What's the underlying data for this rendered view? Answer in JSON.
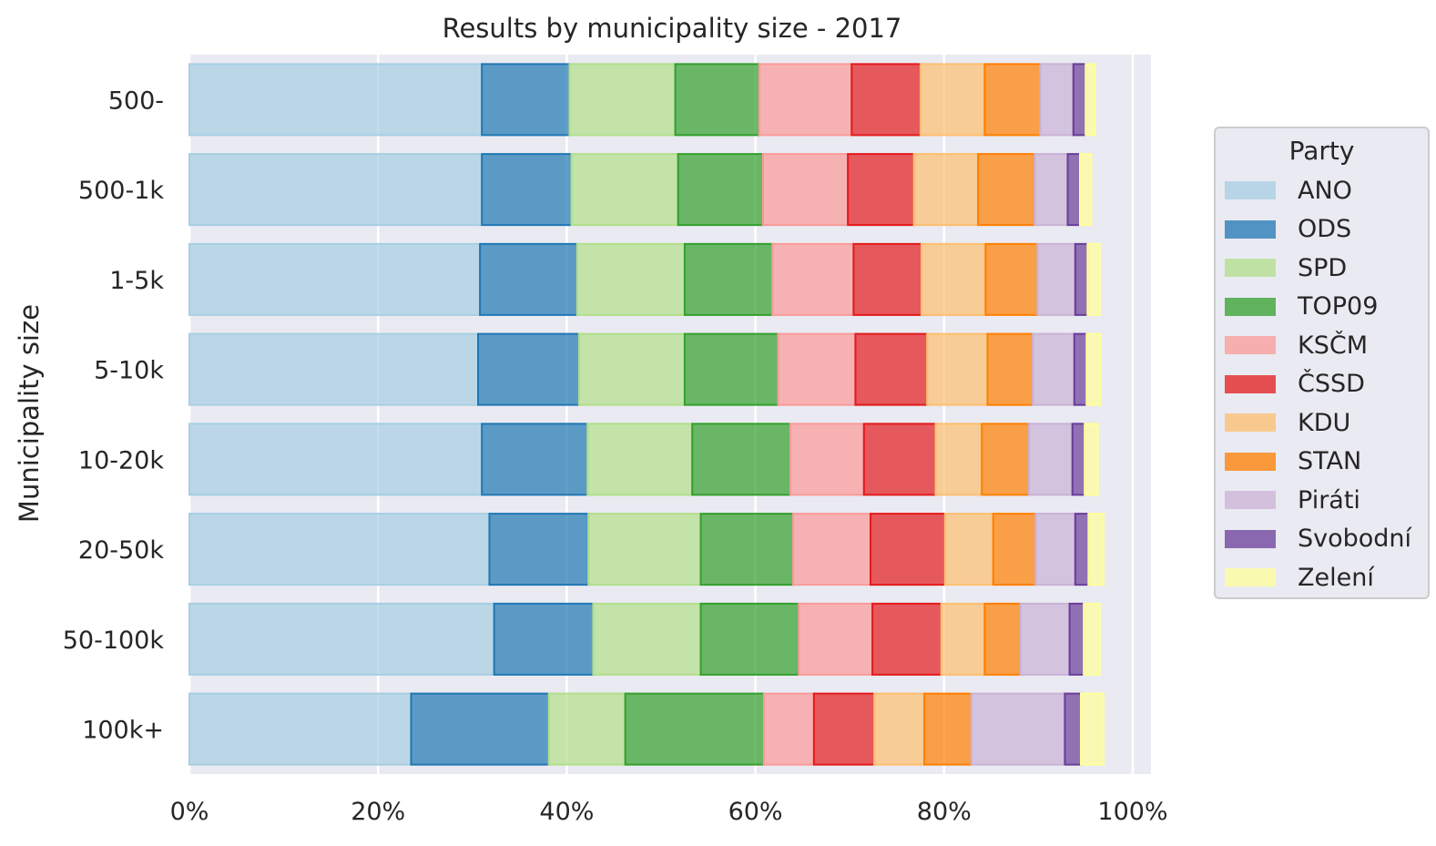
{
  "chart_data": {
    "type": "bar",
    "orientation": "horizontal",
    "stacked": true,
    "title": "Results by municipality size - 2017",
    "xlabel": "",
    "ylabel": "Municipality size",
    "xlim": [
      0,
      102
    ],
    "xticks": [
      "0%",
      "20%",
      "40%",
      "60%",
      "80%",
      "100%"
    ],
    "grid": true,
    "legend": {
      "title": "Party",
      "position": "right"
    },
    "categories": [
      "500-",
      "500-1k",
      "1-5k",
      "5-10k",
      "10-20k",
      "20-50k",
      "50-100k",
      "100k+"
    ],
    "series": [
      {
        "name": "ANO",
        "fill": "#a6cee3",
        "edge": "#a6cee3",
        "values": [
          31.0,
          31.0,
          30.8,
          30.6,
          31.0,
          31.8,
          32.3,
          23.5
        ]
      },
      {
        "name": "ODS",
        "fill": "#1f78b4",
        "edge": "#1f78b4",
        "values": [
          9.3,
          9.5,
          10.3,
          10.7,
          11.2,
          10.5,
          10.5,
          14.6
        ]
      },
      {
        "name": "SPD",
        "fill": "#b2df8a",
        "edge": "#b2df8a",
        "values": [
          11.2,
          11.3,
          11.4,
          11.2,
          11.1,
          11.9,
          11.4,
          8.1
        ]
      },
      {
        "name": "TOP09",
        "fill": "#33a02c",
        "edge": "#33a02c",
        "values": [
          8.9,
          9.0,
          9.3,
          9.9,
          10.4,
          9.8,
          10.4,
          14.7
        ]
      },
      {
        "name": "KSČM",
        "fill": "#fb9a99",
        "edge": "#fb9a99",
        "values": [
          9.8,
          9.0,
          8.6,
          8.2,
          7.8,
          8.2,
          7.8,
          5.3
        ]
      },
      {
        "name": "ČSSD",
        "fill": "#e31a1c",
        "edge": "#e31a1c",
        "values": [
          7.3,
          7.0,
          7.2,
          7.6,
          7.6,
          7.9,
          7.3,
          6.4
        ]
      },
      {
        "name": "KDU",
        "fill": "#fdbf6f",
        "edge": "#fdbf6f",
        "values": [
          6.8,
          6.8,
          6.8,
          6.4,
          4.9,
          5.1,
          4.6,
          5.3
        ]
      },
      {
        "name": "STAN",
        "fill": "#ff7f00",
        "edge": "#ff7f00",
        "values": [
          5.9,
          6.0,
          5.5,
          4.8,
          5.0,
          4.5,
          3.8,
          5.0
        ]
      },
      {
        "name": "Piráti",
        "fill": "#cab2d6",
        "edge": "#cab2d6",
        "values": [
          3.5,
          3.5,
          4.0,
          4.4,
          4.6,
          4.2,
          5.2,
          9.9
        ]
      },
      {
        "name": "Svobodní",
        "fill": "#6a3d9a",
        "edge": "#6a3d9a",
        "values": [
          1.3,
          1.3,
          1.3,
          1.3,
          1.3,
          1.4,
          1.5,
          1.7
        ]
      },
      {
        "name": "Zelení",
        "fill": "#ffff99",
        "edge": "#ffff99",
        "values": [
          1.0,
          1.2,
          1.3,
          1.5,
          1.4,
          1.6,
          1.7,
          2.4
        ]
      }
    ]
  }
}
